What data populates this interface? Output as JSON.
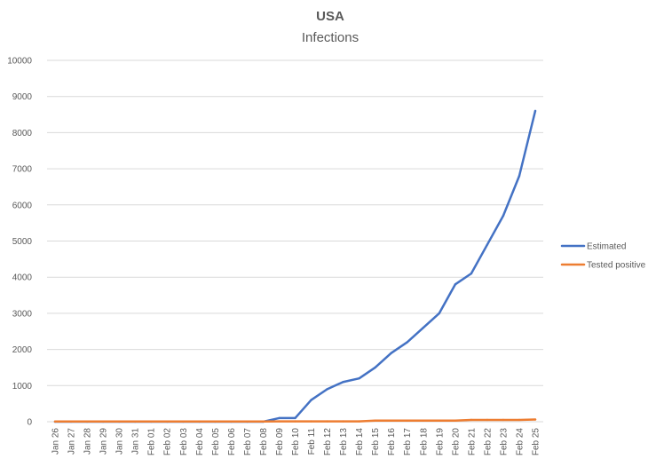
{
  "chart_data": {
    "type": "line",
    "title": "USA",
    "subtitle": "Infections",
    "xlabel": "",
    "ylabel": "",
    "categories": [
      "Jan 26",
      "Jan 27",
      "Jan 28",
      "Jan 29",
      "Jan 30",
      "Jan 31",
      "Feb 01",
      "Feb 02",
      "Feb 03",
      "Feb 04",
      "Feb 05",
      "Feb 06",
      "Feb 07",
      "Feb 08",
      "Feb 09",
      "Feb 10",
      "Feb 11",
      "Feb 12",
      "Feb 13",
      "Feb 14",
      "Feb 15",
      "Feb 16",
      "Feb 17",
      "Feb 18",
      "Feb 19",
      "Feb 20",
      "Feb 21",
      "Feb 22",
      "Feb 23",
      "Feb 24",
      "Feb 25"
    ],
    "ylim": [
      0,
      10000
    ],
    "yticks": [
      0,
      1000,
      2000,
      3000,
      4000,
      5000,
      6000,
      7000,
      8000,
      9000,
      10000
    ],
    "grid": true,
    "legend_position": "right",
    "series": [
      {
        "name": "Estimated",
        "color": "#4472c4",
        "values": [
          0,
          0,
          0,
          0,
          0,
          0,
          0,
          0,
          0,
          0,
          0,
          0,
          0,
          0,
          100,
          100,
          600,
          900,
          1100,
          1200,
          1500,
          1900,
          2200,
          2600,
          3000,
          3800,
          4100,
          4900,
          5700,
          6800,
          8600
        ]
      },
      {
        "name": "Tested positive",
        "color": "#ed7d31",
        "values": [
          5,
          5,
          5,
          5,
          5,
          5,
          5,
          5,
          5,
          5,
          5,
          5,
          5,
          5,
          10,
          10,
          10,
          10,
          10,
          10,
          30,
          30,
          30,
          30,
          30,
          30,
          50,
          50,
          50,
          50,
          60
        ]
      }
    ]
  }
}
